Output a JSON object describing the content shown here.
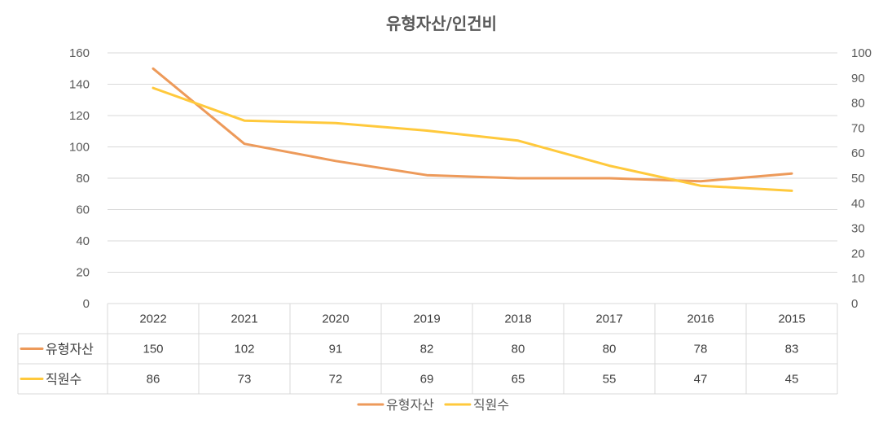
{
  "chart_data": {
    "type": "line",
    "title": "유형자산/인건비",
    "categories": [
      "2022",
      "2021",
      "2020",
      "2019",
      "2018",
      "2017",
      "2016",
      "2015"
    ],
    "series": [
      {
        "name": "유형자산",
        "axis": "left",
        "color": "#ED9A5A",
        "values": [
          150,
          102,
          91,
          82,
          80,
          80,
          78,
          83
        ]
      },
      {
        "name": "직원수",
        "axis": "right",
        "color": "#FFC93C",
        "values": [
          86,
          73,
          72,
          69,
          65,
          55,
          47,
          45
        ]
      }
    ],
    "y_left": {
      "min": 0,
      "max": 160,
      "step": 20
    },
    "y_right": {
      "min": 0,
      "max": 100,
      "step": 10
    },
    "data_table": true,
    "grid": true,
    "legend": "bottom"
  }
}
